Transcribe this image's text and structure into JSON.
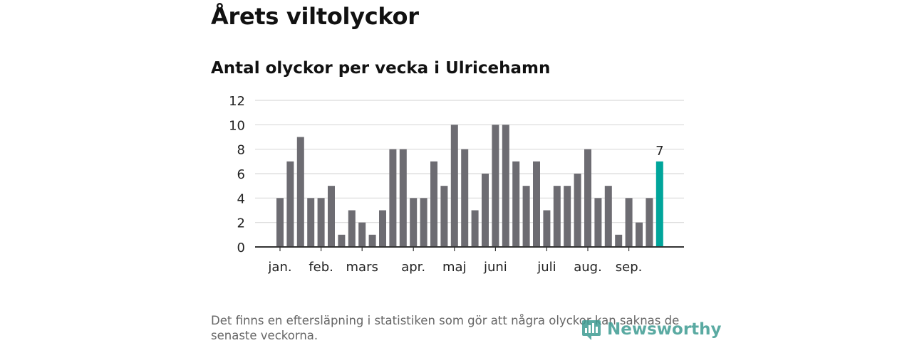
{
  "header": {
    "title": "Årets viltolyckor",
    "subtitle": "Antal olyckor per vecka i Ulricehamn"
  },
  "chart_data": {
    "type": "bar",
    "title": "",
    "xlabel": "",
    "ylabel": "",
    "ylim": [
      0,
      12
    ],
    "y_ticks": [
      0,
      2,
      4,
      6,
      8,
      10,
      12
    ],
    "grid": true,
    "values": [
      4,
      7,
      9,
      4,
      4,
      5,
      1,
      3,
      2,
      1,
      3,
      8,
      8,
      4,
      4,
      7,
      5,
      10,
      8,
      3,
      6,
      10,
      10,
      7,
      5,
      7,
      3,
      5,
      5,
      6,
      8,
      4,
      5,
      1,
      4,
      2,
      4,
      7
    ],
    "month_labels": [
      {
        "label": "jan.",
        "week": 0
      },
      {
        "label": "feb.",
        "week": 4
      },
      {
        "label": "mars",
        "week": 8
      },
      {
        "label": "apr.",
        "week": 13
      },
      {
        "label": "maj",
        "week": 17
      },
      {
        "label": "juni",
        "week": 21
      },
      {
        "label": "juli",
        "week": 26
      },
      {
        "label": "aug.",
        "week": 30
      },
      {
        "label": "sep.",
        "week": 34
      }
    ],
    "highlight_label": "7",
    "colors": {
      "bar": "#6d6c72",
      "highlight": "#00a59b",
      "grid": "#d9d9d9",
      "axis": "#333333"
    }
  },
  "footnote": "Det finns en eftersläpning i statistiken som gör att några olyckor kan saknas de senaste veckorna.",
  "logo": {
    "text": "Newsworthy",
    "color": "#3e9c92"
  }
}
